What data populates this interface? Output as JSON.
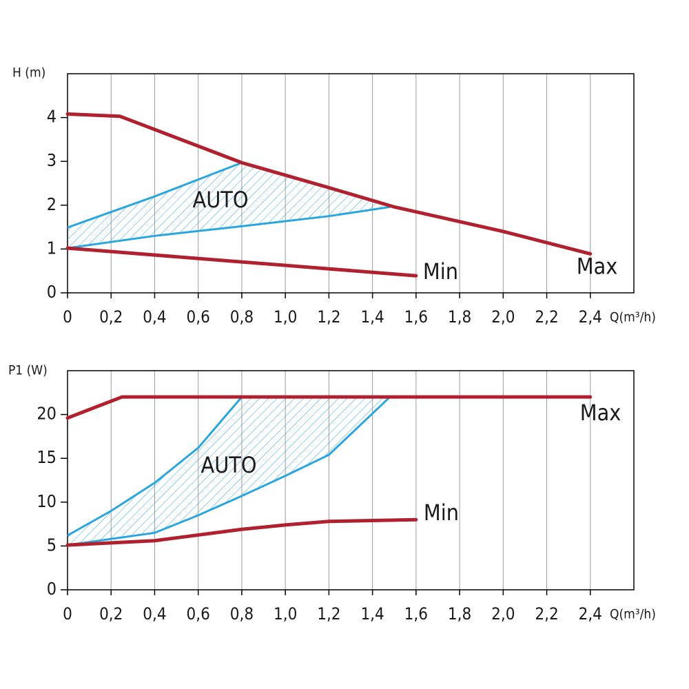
{
  "chart_data": [
    {
      "type": "line",
      "y_label": "H (m)",
      "x_label": "Q(m³/h)",
      "xlim": [
        0,
        2.6
      ],
      "xticks": [
        0,
        {
          "value": 0.2,
          "label": "0,2"
        },
        {
          "value": 0.4,
          "label": "0,4"
        },
        {
          "value": 0.6,
          "label": "0,6"
        },
        {
          "value": 0.8,
          "label": "0,8"
        },
        {
          "value": 1.0,
          "label": "1,0"
        },
        {
          "value": 1.2,
          "label": "1,2"
        },
        {
          "value": 1.4,
          "label": "1,4"
        },
        {
          "value": 1.6,
          "label": "1,6"
        },
        {
          "value": 1.8,
          "label": "1,8"
        },
        {
          "value": 2.0,
          "label": "2,0"
        },
        {
          "value": 2.2,
          "label": "2,2"
        },
        {
          "value": 2.4,
          "label": "2,4"
        }
      ],
      "ylim": [
        0,
        5
      ],
      "yticks": [
        0,
        1,
        2,
        3,
        4
      ],
      "grid": "x",
      "series": [
        {
          "name": "Max",
          "color": "#b0202e",
          "x": [
            0,
            0.24,
            0.8,
            1.2,
            1.5,
            2.0,
            2.4
          ],
          "values": [
            4.08,
            4.03,
            2.97,
            2.4,
            1.96,
            1.4,
            0.89
          ]
        },
        {
          "name": "Min",
          "color": "#b0202e",
          "x": [
            0,
            1.6
          ],
          "values": [
            1.02,
            0.39
          ]
        }
      ],
      "auto_region": {
        "label": "AUTO",
        "color": "#2aa6df",
        "upper": {
          "x": [
            0,
            0.4,
            0.8
          ],
          "values": [
            1.49,
            2.2,
            2.97
          ]
        },
        "lower": {
          "x": [
            0,
            0.4,
            0.8,
            1.2,
            1.48
          ],
          "values": [
            1.02,
            1.3,
            1.52,
            1.75,
            1.96
          ]
        }
      }
    },
    {
      "type": "line",
      "y_label": "P1 (W)",
      "x_label": "Q(m³/h)",
      "xlim": [
        0,
        2.6
      ],
      "xticks": [
        0,
        {
          "value": 0.2,
          "label": "0,2"
        },
        {
          "value": 0.4,
          "label": "0,4"
        },
        {
          "value": 0.6,
          "label": "0,6"
        },
        {
          "value": 0.8,
          "label": "0,8"
        },
        {
          "value": 1.0,
          "label": "1,0"
        },
        {
          "value": 1.2,
          "label": "1,2"
        },
        {
          "value": 1.4,
          "label": "1,4"
        },
        {
          "value": 1.6,
          "label": "1,6"
        },
        {
          "value": 1.8,
          "label": "1,8"
        },
        {
          "value": 2.0,
          "label": "2,0"
        },
        {
          "value": 2.2,
          "label": "2,2"
        },
        {
          "value": 2.4,
          "label": "2,4"
        }
      ],
      "ylim": [
        0,
        25
      ],
      "yticks": [
        0,
        5,
        10,
        15,
        20
      ],
      "grid": "x",
      "series": [
        {
          "name": "Max",
          "color": "#b0202e",
          "x": [
            0,
            0.25,
            2.4
          ],
          "values": [
            19.6,
            22,
            22
          ]
        },
        {
          "name": "Min",
          "color": "#b0202e",
          "x": [
            0,
            0.4,
            0.8,
            1.0,
            1.2,
            1.6
          ],
          "values": [
            5.1,
            5.6,
            6.9,
            7.4,
            7.8,
            8.0
          ]
        }
      ],
      "auto_region": {
        "label": "AUTO",
        "color": "#2aa6df",
        "upper": {
          "x": [
            0,
            0.2,
            0.4,
            0.6,
            0.8
          ],
          "values": [
            6.2,
            9,
            12.2,
            16.2,
            22
          ]
        },
        "lower": {
          "x": [
            0,
            0.4,
            0.6,
            0.8,
            1.0,
            1.2,
            1.48
          ],
          "values": [
            5.1,
            6.5,
            8.5,
            10.7,
            13,
            15.4,
            22
          ]
        }
      }
    }
  ]
}
